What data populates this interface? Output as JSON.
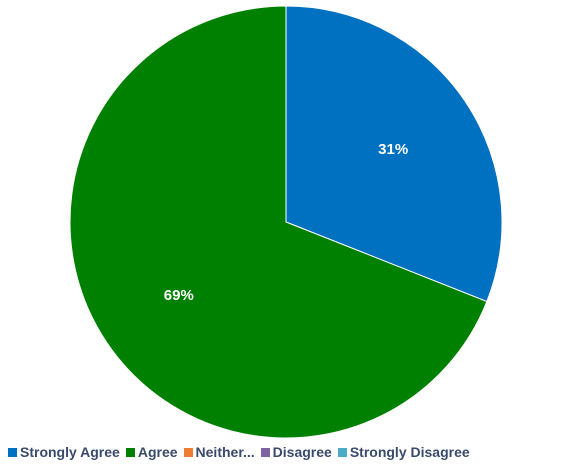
{
  "chart_data": {
    "type": "pie",
    "title": "",
    "slices": [
      {
        "name": "Strongly Agree",
        "value": 31,
        "label": "31%",
        "color": "#0070c0"
      },
      {
        "name": "Agree",
        "value": 69,
        "label": "69%",
        "color": "#008000"
      },
      {
        "name": "Neither...",
        "value": 0,
        "label": "",
        "color": "#ed7d31"
      },
      {
        "name": "Disagree",
        "value": 0,
        "label": "",
        "color": "#8064a2"
      },
      {
        "name": "Strongly Disagree",
        "value": 0,
        "label": "",
        "color": "#4bacc6"
      }
    ],
    "legend": {
      "placement": "bottom",
      "entries": [
        "Strongly Agree",
        "Agree",
        "Neither...",
        "Disagree",
        "Strongly Disagree"
      ]
    }
  }
}
